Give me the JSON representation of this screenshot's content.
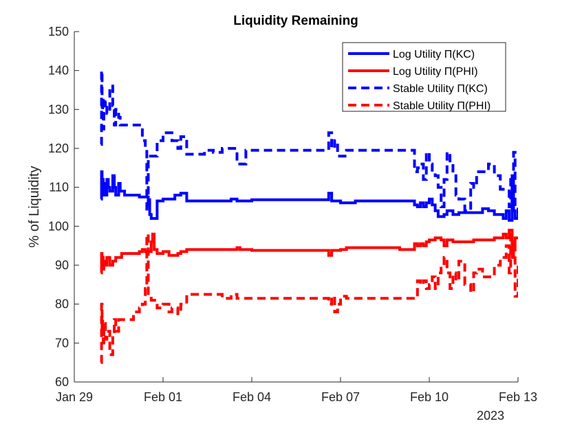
{
  "chart_data": {
    "type": "line",
    "title": "Liquidity Remaining",
    "xlabel": "",
    "ylabel": "% of Liquidity",
    "x_axis_secondary_label": "2023",
    "xlim": [
      0,
      15
    ],
    "ylim": [
      60,
      150
    ],
    "x_ticks": [
      {
        "value": 0,
        "label": "Jan 29"
      },
      {
        "value": 3,
        "label": "Feb 01"
      },
      {
        "value": 6,
        "label": "Feb 04"
      },
      {
        "value": 9,
        "label": "Feb 07"
      },
      {
        "value": 12,
        "label": "Feb 10"
      },
      {
        "value": 15,
        "label": "Feb 13"
      }
    ],
    "y_ticks": [
      60,
      70,
      80,
      90,
      100,
      110,
      120,
      130,
      140,
      150
    ],
    "legend_position": "top-right",
    "series": [
      {
        "name": "Log Utility Π(KC)",
        "color": "#0000ff",
        "style": "solid",
        "x": [
          0.9,
          0.92,
          0.94,
          0.96,
          0.98,
          1.0,
          1.05,
          1.1,
          1.15,
          1.2,
          1.3,
          1.35,
          1.4,
          1.5,
          1.55,
          1.6,
          1.7,
          1.8,
          2.0,
          2.2,
          2.3,
          2.4,
          2.5,
          2.55,
          2.6,
          2.8,
          3.0,
          3.2,
          3.4,
          3.5,
          3.6,
          3.8,
          4.0,
          4.5,
          5.0,
          5.3,
          5.5,
          5.7,
          6.0,
          7.0,
          8.0,
          8.5,
          8.6,
          8.7,
          8.8,
          9.0,
          9.2,
          9.5,
          10.0,
          10.5,
          11.0,
          11.3,
          11.5,
          11.6,
          11.7,
          11.8,
          11.9,
          12.0,
          12.1,
          12.2,
          12.3,
          12.5,
          12.6,
          12.8,
          13.0,
          13.5,
          13.8,
          14.0,
          14.2,
          14.4,
          14.5,
          14.6,
          14.7,
          14.8,
          14.85,
          14.9,
          15.0
        ],
        "y": [
          107,
          114,
          110,
          112,
          108,
          111,
          108,
          112,
          110,
          109,
          113,
          110,
          108,
          111,
          109,
          109,
          108,
          108,
          108,
          107.5,
          107.5,
          107.5,
          106.8,
          103,
          102,
          106.5,
          107,
          107,
          108,
          108,
          108.5,
          106.5,
          106.5,
          106.5,
          106.5,
          107,
          106.5,
          106.5,
          106.8,
          106.8,
          106.8,
          106.8,
          108.5,
          106.5,
          106.5,
          106,
          106,
          106.5,
          106.5,
          106.5,
          106.5,
          106.5,
          105.5,
          105,
          106,
          105,
          106,
          107,
          105.5,
          104,
          102.5,
          103,
          104,
          103,
          103.5,
          103.5,
          104.5,
          104,
          103,
          103,
          102,
          104,
          101.5,
          113,
          104,
          102,
          103
        ]
      },
      {
        "name": "Log Utility Π(PHI)",
        "color": "#ff0000",
        "style": "solid",
        "x": [
          0.9,
          0.92,
          0.94,
          0.96,
          0.98,
          1.0,
          1.05,
          1.1,
          1.2,
          1.3,
          1.4,
          1.5,
          1.6,
          1.7,
          1.8,
          2.0,
          2.2,
          2.3,
          2.4,
          2.5,
          2.6,
          2.65,
          2.7,
          2.8,
          3.0,
          3.2,
          3.4,
          3.5,
          3.6,
          3.8,
          4.0,
          4.2,
          4.5,
          5.0,
          5.3,
          5.5,
          5.6,
          5.7,
          6.0,
          7.0,
          8.0,
          8.5,
          8.6,
          8.7,
          8.8,
          9.0,
          9.2,
          9.5,
          10.0,
          10.5,
          11.0,
          11.3,
          11.5,
          11.6,
          11.7,
          11.8,
          11.9,
          12.0,
          12.2,
          12.3,
          12.4,
          12.5,
          12.6,
          12.8,
          13.0,
          13.5,
          13.8,
          14.0,
          14.2,
          14.4,
          14.5,
          14.6,
          14.7,
          14.8,
          14.85,
          14.9,
          15.0
        ],
        "y": [
          88,
          93,
          90,
          92,
          89,
          91,
          90,
          92,
          90,
          91,
          92,
          92,
          93,
          93,
          93,
          93,
          93.5,
          94,
          93.5,
          93.5,
          96,
          98,
          94,
          93,
          93.5,
          92.5,
          92.5,
          93,
          93.5,
          94,
          94,
          94,
          94,
          94,
          94,
          94.5,
          94,
          94,
          93.8,
          93.8,
          93.8,
          93.8,
          92.5,
          93.8,
          93.8,
          94,
          94.5,
          94.5,
          94.5,
          94.5,
          94,
          94,
          95.5,
          95,
          95.5,
          95,
          96,
          96.5,
          97,
          97,
          96.5,
          95,
          96.5,
          96,
          96,
          96.5,
          96.5,
          96.5,
          97,
          97,
          98,
          97,
          99,
          92,
          96,
          97,
          97
        ]
      },
      {
        "name": "Stable Utility Π(KC)",
        "color": "#0000ff",
        "style": "dashed",
        "x": [
          0.9,
          0.92,
          0.94,
          0.96,
          0.98,
          1.0,
          1.05,
          1.1,
          1.2,
          1.3,
          1.35,
          1.4,
          1.5,
          1.55,
          1.6,
          1.7,
          2.0,
          2.2,
          2.3,
          2.4,
          2.45,
          2.5,
          2.6,
          2.8,
          3.0,
          3.2,
          3.3,
          3.5,
          3.6,
          3.8,
          4.0,
          4.4,
          4.7,
          5.0,
          5.3,
          5.5,
          5.8,
          6.0,
          7.0,
          8.0,
          8.5,
          8.6,
          8.7,
          8.8,
          8.9,
          9.0,
          9.2,
          9.5,
          10.0,
          10.5,
          11.0,
          11.3,
          11.5,
          11.6,
          11.7,
          11.8,
          11.9,
          12.0,
          12.1,
          12.2,
          12.3,
          12.4,
          12.5,
          12.6,
          12.7,
          12.8,
          12.9,
          13.0,
          13.2,
          13.4,
          13.5,
          13.6,
          13.8,
          14.0,
          14.2,
          14.4,
          14.5,
          14.6,
          14.7,
          14.75,
          14.8,
          14.85,
          14.9,
          15.0
        ],
        "y": [
          121,
          140,
          128,
          133,
          125,
          131,
          132,
          129,
          136,
          131,
          126,
          130,
          128,
          126,
          126,
          126,
          126,
          126,
          122,
          120,
          104,
          118,
          118,
          122,
          124,
          124,
          122,
          120,
          123,
          118.5,
          118.5,
          119.5,
          119,
          120,
          120,
          116,
          119.5,
          119.5,
          119.5,
          119.5,
          119.5,
          124,
          120,
          122,
          118,
          118,
          119.5,
          119.5,
          119.5,
          119.5,
          119.5,
          119.5,
          114,
          115,
          116,
          112,
          119,
          116,
          114,
          113,
          110,
          105,
          112,
          119,
          116,
          113,
          108,
          107,
          104,
          111,
          110,
          114,
          114,
          116,
          113,
          109.5,
          109.5,
          109.5,
          105,
          112,
          106,
          119,
          105,
          103
        ]
      },
      {
        "name": "Stable Utility Π(PHI)",
        "color": "#ff0000",
        "style": "dashed",
        "x": [
          0.9,
          0.92,
          0.94,
          0.96,
          0.98,
          1.0,
          1.05,
          1.1,
          1.2,
          1.3,
          1.35,
          1.4,
          1.5,
          1.6,
          1.7,
          2.0,
          2.2,
          2.3,
          2.4,
          2.45,
          2.5,
          2.6,
          2.8,
          3.0,
          3.2,
          3.3,
          3.5,
          3.6,
          3.8,
          4.0,
          4.4,
          4.7,
          5.0,
          5.3,
          5.5,
          5.8,
          6.0,
          7.0,
          8.0,
          8.5,
          8.6,
          8.7,
          8.8,
          8.9,
          9.0,
          9.2,
          9.5,
          10.0,
          10.5,
          11.0,
          11.3,
          11.5,
          11.6,
          11.7,
          11.8,
          11.9,
          12.0,
          12.1,
          12.2,
          12.3,
          12.4,
          12.5,
          12.6,
          12.7,
          12.8,
          12.9,
          13.0,
          13.2,
          13.4,
          13.5,
          13.6,
          13.8,
          14.0,
          14.2,
          14.4,
          14.5,
          14.6,
          14.7,
          14.75,
          14.8,
          14.85,
          14.9,
          15.0
        ],
        "y": [
          65,
          80,
          73,
          76,
          70,
          75,
          71,
          73,
          67,
          72,
          76,
          73,
          76,
          76,
          76,
          78,
          79,
          80,
          84,
          98,
          82,
          81,
          79,
          80,
          78,
          79,
          77.5,
          80,
          82.5,
          82.5,
          82.5,
          82.5,
          81.5,
          82.5,
          81.5,
          81.5,
          81.5,
          81.5,
          81.5,
          81.5,
          80,
          82,
          78,
          80,
          82,
          81.5,
          81.5,
          81.5,
          81.5,
          81.5,
          81.5,
          81.5,
          86,
          85,
          86,
          84,
          85,
          87,
          84,
          88,
          90,
          92,
          88,
          84,
          88,
          86,
          91,
          85,
          83,
          88,
          89,
          87,
          87,
          90,
          92,
          92,
          95,
          88,
          99,
          93,
          96,
          82,
          91
        ]
      }
    ]
  }
}
